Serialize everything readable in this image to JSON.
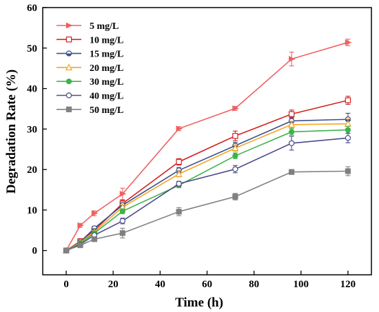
{
  "chart_data": {
    "type": "line",
    "xlabel": "Time (h)",
    "ylabel": "Degradation Rate (%)",
    "xlim": [
      -10,
      130
    ],
    "ylim": [
      -6,
      60
    ],
    "xticks": [
      0,
      20,
      40,
      60,
      80,
      100,
      120
    ],
    "yticks": [
      0,
      10,
      20,
      30,
      40,
      50,
      60
    ],
    "grid": false,
    "legend_position": "top-left",
    "x": [
      0,
      6,
      12,
      24,
      48,
      72,
      96,
      120
    ],
    "series": [
      {
        "name": "5 mg/L",
        "color": "#f06060",
        "marker": "triangle-right",
        "values": [
          0,
          6.2,
          9.2,
          14.0,
          30.1,
          35.1,
          47.3,
          51.4
        ],
        "errors": [
          0.3,
          0.5,
          0.6,
          1.4,
          0.5,
          0.5,
          1.7,
          0.8
        ]
      },
      {
        "name": "10 mg/L",
        "color": "#d42020",
        "marker": "square-open",
        "values": [
          0,
          2.3,
          5.0,
          11.6,
          21.9,
          28.3,
          33.7,
          37.1
        ],
        "errors": [
          0.3,
          0.4,
          0.6,
          0.8,
          0.8,
          1.2,
          1.0,
          1.0
        ]
      },
      {
        "name": "15 mg/L",
        "color": "#3a4f8c",
        "marker": "circle-half",
        "values": [
          0,
          2.1,
          5.5,
          11.2,
          19.8,
          25.9,
          32.0,
          32.4
        ],
        "errors": [
          0.3,
          0.3,
          0.5,
          0.6,
          0.7,
          0.8,
          0.9,
          1.5
        ]
      },
      {
        "name": "20 mg/L",
        "color": "#f5a623",
        "marker": "triangle-open",
        "values": [
          0,
          2.0,
          4.6,
          10.7,
          18.9,
          25.3,
          31.1,
          31.3
        ],
        "errors": [
          0.3,
          0.3,
          0.4,
          0.6,
          0.7,
          0.8,
          0.8,
          1.2
        ]
      },
      {
        "name": "30 mg/L",
        "color": "#3db34a",
        "marker": "circle",
        "values": [
          0,
          1.8,
          4.3,
          9.7,
          16.1,
          23.4,
          29.3,
          29.8
        ],
        "errors": [
          0.3,
          0.3,
          0.4,
          0.6,
          0.6,
          0.7,
          0.8,
          0.9
        ]
      },
      {
        "name": "40 mg/L",
        "color": "#4a4a8a",
        "marker": "circle-open",
        "values": [
          0,
          1.5,
          3.8,
          7.3,
          16.5,
          20.1,
          26.5,
          27.8
        ],
        "errors": [
          0.3,
          0.3,
          0.4,
          0.7,
          0.6,
          0.9,
          1.7,
          1.2
        ]
      },
      {
        "name": "50 mg/L",
        "color": "#808080",
        "marker": "square",
        "values": [
          0,
          1.3,
          2.8,
          4.3,
          9.6,
          13.3,
          19.4,
          19.6
        ],
        "errors": [
          0.3,
          0.3,
          0.5,
          1.2,
          1.0,
          0.8,
          0.6,
          1.1
        ]
      }
    ]
  }
}
